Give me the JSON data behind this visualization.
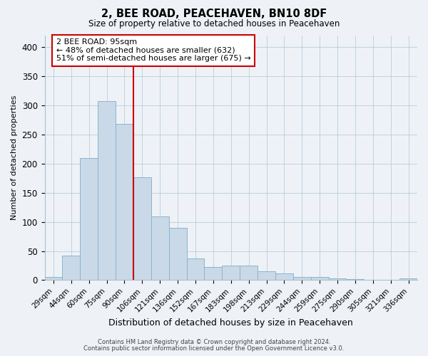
{
  "title": "2, BEE ROAD, PEACEHAVEN, BN10 8DF",
  "subtitle": "Size of property relative to detached houses in Peacehaven",
  "xlabel": "Distribution of detached houses by size in Peacehaven",
  "ylabel": "Number of detached properties",
  "bar_labels": [
    "29sqm",
    "44sqm",
    "60sqm",
    "75sqm",
    "90sqm",
    "106sqm",
    "121sqm",
    "136sqm",
    "152sqm",
    "167sqm",
    "183sqm",
    "198sqm",
    "213sqm",
    "229sqm",
    "244sqm",
    "259sqm",
    "275sqm",
    "290sqm",
    "305sqm",
    "321sqm",
    "336sqm"
  ],
  "bar_values": [
    5,
    42,
    210,
    308,
    268,
    177,
    109,
    90,
    37,
    22,
    25,
    25,
    15,
    12,
    6,
    6,
    3,
    2,
    1,
    0,
    3
  ],
  "bar_color": "#c9d9e8",
  "bar_edge_color": "#8ab4cc",
  "vline_x": 4.5,
  "vline_color": "#cc0000",
  "annotation_title": "2 BEE ROAD: 95sqm",
  "annotation_line1": "← 48% of detached houses are smaller (632)",
  "annotation_line2": "51% of semi-detached houses are larger (675) →",
  "annotation_box_color": "#cc0000",
  "ylim": [
    0,
    420
  ],
  "yticks": [
    0,
    50,
    100,
    150,
    200,
    250,
    300,
    350,
    400
  ],
  "background_color": "#eef2f7",
  "footer1": "Contains HM Land Registry data © Crown copyright and database right 2024.",
  "footer2": "Contains public sector information licensed under the Open Government Licence v3.0."
}
